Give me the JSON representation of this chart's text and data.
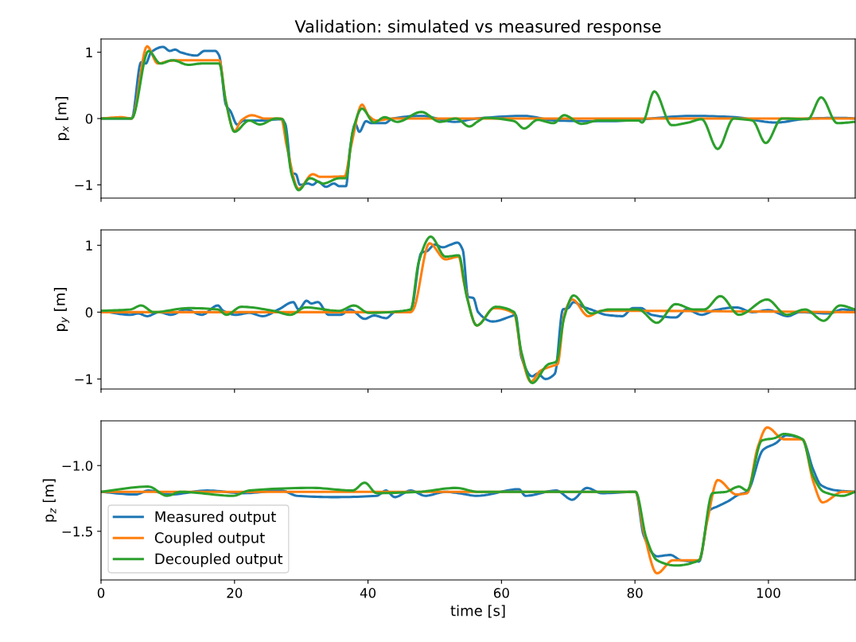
{
  "chart_data": [
    {
      "type": "line",
      "title": "Validation: simulated vs measured response",
      "ylabel": "p$_{x}$ [m]",
      "xlim": [
        0,
        113
      ],
      "xticks": [
        0,
        20,
        40,
        60,
        80,
        100
      ],
      "ylim": [
        -1.2,
        1.2
      ],
      "yticks": [
        -1,
        0,
        1
      ],
      "tick_labels": "y",
      "grid": false,
      "legend": false,
      "series": [
        {
          "color": "#1f77b4",
          "x": [
            0,
            4.6,
            6.0,
            6.7,
            7.5,
            9.3,
            10.3,
            11.1,
            11.9,
            14.3,
            15.5,
            17.1,
            17.7,
            18.7,
            19.4,
            20.4,
            21.4,
            23.8,
            27,
            27.6,
            28.6,
            29.2,
            29.8,
            31,
            31.7,
            32.5,
            33.7,
            34.9,
            35.7,
            36.7,
            37.3,
            38.1,
            38.7,
            39.7,
            40.5,
            42.5,
            43.7,
            48,
            53,
            56.3,
            63.4,
            68,
            76,
            88.8,
            95,
            101.1,
            106,
            111,
            113
          ],
          "values": [
            0,
            0,
            0.85,
            0.83,
            1.0,
            1.08,
            1.02,
            1.04,
            1.0,
            0.95,
            1.02,
            1.02,
            0.95,
            0.21,
            0.11,
            -0.09,
            -0.03,
            -0.03,
            -0.01,
            -0.08,
            -0.82,
            -0.84,
            -1.0,
            -0.98,
            -1.0,
            -0.95,
            -1.03,
            -0.98,
            -1.02,
            -1.02,
            -0.46,
            -0.08,
            -0.2,
            -0.04,
            -0.07,
            -0.07,
            0,
            0.04,
            -0.05,
            0,
            0.04,
            -0.03,
            -0.04,
            0.04,
            0.02,
            -0.06,
            0,
            0.01,
            0
          ]
        },
        {
          "color": "#ff7f0e",
          "x": [
            0,
            3,
            4.6,
            6.9,
            8.5,
            10.3,
            11.9,
            17.7,
            18.7,
            20.0,
            21.0,
            22.6,
            24.6,
            27,
            27.8,
            29.6,
            31.7,
            32.9,
            36.5,
            37.5,
            39.1,
            40.1,
            41.3,
            43.7,
            113
          ],
          "values": [
            0,
            0.02,
            0,
            1.09,
            0.83,
            0.87,
            0.88,
            0.88,
            0.26,
            -0.19,
            -0.03,
            0.05,
            0,
            0,
            -0.4,
            -1.06,
            -0.84,
            -0.88,
            -0.87,
            -0.4,
            0.21,
            0.04,
            -0.03,
            0,
            0
          ]
        },
        {
          "color": "#2ca02c",
          "x": [
            0,
            4.6,
            7.1,
            8.9,
            10.7,
            13.1,
            15.1,
            17.7,
            18.7,
            20.0,
            22.2,
            23.8,
            26.2,
            27.2,
            28.6,
            29.6,
            31.3,
            33.3,
            35.7,
            36.7,
            37.7,
            39.1,
            40.9,
            42.5,
            44.4,
            48.0,
            50.8,
            53.2,
            55.2,
            56.5,
            57.5,
            61.9,
            63.4,
            65.4,
            67.8,
            69.4,
            72.0,
            74.5,
            80.5,
            81.1,
            82.9,
            85.5,
            88.0,
            90,
            92.4,
            94.8,
            96,
            97.6,
            99.6,
            102,
            105.9,
            107.9,
            110.3,
            113
          ],
          "values": [
            0,
            0,
            1.02,
            0.83,
            0.88,
            0.81,
            0.83,
            0.83,
            0.26,
            -0.2,
            -0.03,
            -0.09,
            0,
            -0.01,
            -0.86,
            -1.08,
            -0.9,
            -0.98,
            -0.9,
            -0.9,
            -0.2,
            0.15,
            -0.06,
            0.02,
            -0.05,
            0.1,
            -0.05,
            0,
            -0.12,
            -0.04,
            0.01,
            -0.04,
            -0.15,
            -0.02,
            -0.07,
            0.05,
            -0.08,
            -0.03,
            -0.03,
            -0.06,
            0.41,
            -0.1,
            -0.06,
            -0.01,
            -0.46,
            0,
            -0.01,
            -0.03,
            -0.37,
            0,
            -0.01,
            0.32,
            -0.07,
            -0.05
          ]
        }
      ]
    },
    {
      "type": "line",
      "ylabel": "p$_{y}$ [m]",
      "xlim": [
        0,
        113
      ],
      "xticks": [
        0,
        20,
        40,
        60,
        80,
        100
      ],
      "ylim": [
        -1.15,
        1.23
      ],
      "yticks": [
        -1,
        0,
        1
      ],
      "tick_labels": "y",
      "grid": false,
      "legend": false,
      "series": [
        {
          "color": "#1f77b4",
          "x": [
            0,
            4.4,
            5.6,
            6.9,
            8.7,
            10.5,
            12.7,
            15.1,
            17.5,
            18.3,
            20.2,
            22.2,
            24.2,
            26.6,
            28.8,
            29.6,
            30.8,
            31.5,
            32.5,
            34.1,
            35.9,
            37.3,
            39.5,
            40.9,
            42.7,
            44.0,
            46.4,
            48.0,
            48.8,
            50.0,
            51.2,
            52.4,
            53.4,
            54.2,
            55.0,
            55.8,
            56.5,
            58.7,
            61.5,
            62.1,
            63.0,
            64.6,
            65.4,
            66.6,
            68.0,
            69.2,
            70.0,
            70.8,
            72.2,
            73.4,
            75.7,
            78.1,
            79.7,
            80.9,
            82.5,
            86.1,
            87.7,
            90.0,
            92.0,
            95.2,
            97.6,
            100,
            102.9,
            104.7,
            109.1,
            111.1,
            113
          ],
          "values": [
            0.02,
            -0.04,
            -0.02,
            -0.06,
            0,
            -0.04,
            0.04,
            -0.04,
            0.1,
            0.02,
            -0.04,
            -0.01,
            -0.06,
            0.04,
            0.15,
            0.04,
            0.17,
            0.13,
            0.15,
            -0.04,
            -0.04,
            0.04,
            -0.1,
            -0.05,
            -0.09,
            0,
            0.02,
            0.89,
            0.91,
            1.01,
            0.97,
            1.01,
            1.04,
            0.93,
            0.23,
            0.21,
            0,
            -0.14,
            -0.06,
            -0.04,
            -0.68,
            -0.96,
            -0.92,
            -1.0,
            -0.92,
            0.04,
            0.06,
            0.15,
            0.08,
            0.04,
            -0.04,
            -0.06,
            0.06,
            0.06,
            -0.04,
            -0.08,
            0.04,
            -0.04,
            0.03,
            0.07,
            0,
            0.03,
            -0.06,
            0,
            -0.02,
            0.04,
            0.02
          ]
        },
        {
          "color": "#ff7f0e",
          "x": [
            0,
            46.4,
            46.8,
            49.2,
            51.6,
            53.6,
            54.4,
            56.3,
            58.9,
            61.9,
            63.0,
            64.4,
            65.8,
            67.8,
            68.4,
            69.4,
            70.6,
            73.0,
            75,
            113
          ],
          "values": [
            0,
            0,
            0.04,
            1.03,
            0.79,
            0.83,
            0.43,
            -0.2,
            0.06,
            -0.02,
            -0.64,
            -1.04,
            -0.88,
            -0.8,
            -0.78,
            -0.04,
            0.19,
            -0.06,
            0.02,
            0
          ]
        },
        {
          "color": "#2ca02c",
          "x": [
            0,
            4.4,
            6.0,
            7.9,
            13.1,
            17.5,
            18.8,
            21.0,
            25.8,
            28.4,
            30.6,
            35.7,
            37.9,
            40.1,
            46.4,
            47.6,
            49.4,
            51.6,
            53.6,
            54.8,
            56.3,
            59.1,
            61.9,
            63.0,
            64.6,
            67.0,
            68.2,
            69.4,
            70.8,
            73.4,
            76.1,
            80.5,
            83.3,
            86.1,
            88.8,
            90.4,
            92.8,
            95.6,
            99.8,
            102.7,
            105.5,
            108.3,
            110.7,
            113
          ],
          "values": [
            0.02,
            0.04,
            0.1,
            0,
            0.06,
            0.04,
            -0.04,
            0.08,
            0.02,
            -0.04,
            0.07,
            0.02,
            0.1,
            -0.01,
            0.04,
            0.75,
            1.13,
            0.83,
            0.85,
            0.23,
            -0.2,
            0.08,
            0,
            -0.6,
            -1.06,
            -0.78,
            -0.74,
            -0.08,
            0.25,
            -0.02,
            0.04,
            0.04,
            -0.16,
            0.12,
            0.04,
            0.04,
            0.24,
            -0.04,
            0.19,
            -0.04,
            0.04,
            -0.13,
            0.1,
            0.04
          ]
        }
      ]
    },
    {
      "type": "line",
      "ylabel": "p$_{z}$ [m]",
      "xlabel": "time [s]",
      "xlim": [
        0,
        113
      ],
      "xticks": [
        0,
        20,
        40,
        60,
        80,
        100
      ],
      "ylim": [
        -1.87,
        -0.66
      ],
      "yticks": [
        -1.5,
        {
          "value": -1.0,
          "label": "−1.0"
        }
      ],
      "grid": false,
      "legend": "bottom left",
      "series": [
        {
          "name": "Measured output",
          "color": "#1f77b4",
          "x": [
            0,
            5.2,
            7.1,
            10.3,
            15.9,
            21.4,
            27,
            29.4,
            34.9,
            41.3,
            42.7,
            44,
            46.4,
            48.6,
            51.6,
            53.6,
            56.3,
            62.6,
            63.6,
            68.2,
            70.6,
            72.8,
            75,
            80.1,
            81.3,
            83.3,
            85.3,
            86.9,
            89.6,
            91.2,
            92.4,
            94.0,
            95.6,
            96.8,
            99.2,
            101.1,
            102.7,
            105.1,
            106.7,
            107.9,
            110.3,
            113
          ],
          "values": [
            -1.2,
            -1.22,
            -1.19,
            -1.22,
            -1.19,
            -1.21,
            -1.19,
            -1.23,
            -1.24,
            -1.23,
            -1.19,
            -1.24,
            -1.19,
            -1.23,
            -1.2,
            -1.21,
            -1.23,
            -1.18,
            -1.23,
            -1.19,
            -1.26,
            -1.17,
            -1.21,
            -1.2,
            -1.53,
            -1.69,
            -1.68,
            -1.72,
            -1.73,
            -1.34,
            -1.31,
            -1.27,
            -1.22,
            -1.2,
            -0.88,
            -0.83,
            -0.77,
            -0.8,
            -1.03,
            -1.15,
            -1.19,
            -1.2
          ]
        },
        {
          "name": "Coupled output",
          "color": "#ff7f0e",
          "x": [
            0,
            80.1,
            81.3,
            83.3,
            85.7,
            89.6,
            90.8,
            92.4,
            95.2,
            96.8,
            98.4,
            99.8,
            102.3,
            105.1,
            106.7,
            108.1,
            111.1,
            113
          ],
          "values": [
            -1.2,
            -1.2,
            -1.5,
            -1.82,
            -1.72,
            -1.72,
            -1.43,
            -1.11,
            -1.22,
            -1.21,
            -0.86,
            -0.71,
            -0.8,
            -0.8,
            -1.12,
            -1.28,
            -1.2,
            -1.2
          ]
        },
        {
          "name": "Decoupled output",
          "color": "#2ca02c",
          "x": [
            0,
            7.1,
            9.9,
            11.9,
            19.8,
            22.2,
            31.7,
            37.7,
            39.5,
            41.3,
            47.6,
            53.2,
            56.5,
            80.1,
            81.7,
            83.3,
            86.1,
            89.6,
            91.6,
            93.6,
            95.6,
            96.8,
            99,
            101,
            102.3,
            105.1,
            106.7,
            108.3,
            111.1,
            113
          ],
          "values": [
            -1.2,
            -1.16,
            -1.23,
            -1.2,
            -1.23,
            -1.19,
            -1.17,
            -1.19,
            -1.13,
            -1.21,
            -1.2,
            -1.17,
            -1.2,
            -1.2,
            -1.55,
            -1.72,
            -1.76,
            -1.72,
            -1.21,
            -1.2,
            -1.16,
            -1.19,
            -0.81,
            -0.79,
            -0.76,
            -0.8,
            -1.08,
            -1.2,
            -1.23,
            -1.2
          ]
        }
      ]
    }
  ]
}
